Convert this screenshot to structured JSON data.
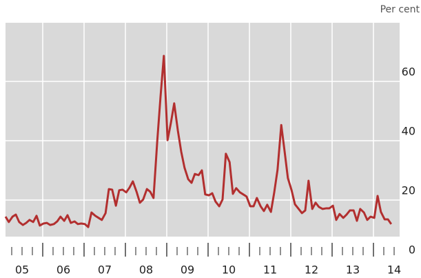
{
  "chart_data": {
    "type": "line",
    "y_axis_label": "Per cent",
    "xlim": [
      2005,
      2014.7
    ],
    "xticks": [
      {
        "value": 2005.5,
        "label": "05"
      },
      {
        "value": 2006.5,
        "label": "06"
      },
      {
        "value": 2007.5,
        "label": "07"
      },
      {
        "value": 2008.5,
        "label": "08"
      },
      {
        "value": 2009.5,
        "label": "09"
      },
      {
        "value": 2010.5,
        "label": "10"
      },
      {
        "value": 2011.5,
        "label": "11"
      },
      {
        "value": 2012.5,
        "label": "12"
      },
      {
        "value": 2013.5,
        "label": "13"
      },
      {
        "value": 2014.5,
        "label": "14"
      }
    ],
    "xgrid": [
      2006,
      2007,
      2008,
      2009,
      2010,
      2011,
      2012,
      2013,
      2014
    ],
    "ylim": [
      0,
      80
    ],
    "yticks": [
      0,
      20,
      40,
      60
    ],
    "grid": true,
    "x": [
      2005.1,
      2005.18,
      2005.27,
      2005.35,
      2005.43,
      2005.52,
      2005.6,
      2005.68,
      2005.77,
      2005.85,
      2005.93,
      2006.02,
      2006.1,
      2006.18,
      2006.27,
      2006.35,
      2006.43,
      2006.52,
      2006.6,
      2006.68,
      2006.77,
      2006.85,
      2006.93,
      2007.02,
      2007.1,
      2007.18,
      2007.27,
      2007.35,
      2007.43,
      2007.52,
      2007.6,
      2007.68,
      2007.77,
      2007.85,
      2007.93,
      2008.02,
      2008.1,
      2008.18,
      2008.27,
      2008.35,
      2008.43,
      2008.52,
      2008.6,
      2008.68,
      2008.77,
      2008.85,
      2008.93,
      2009.02,
      2009.1,
      2009.18,
      2009.27,
      2009.35,
      2009.43,
      2009.52,
      2009.6,
      2009.68,
      2009.77,
      2009.85,
      2009.93,
      2010.02,
      2010.1,
      2010.18,
      2010.27,
      2010.35,
      2010.43,
      2010.52,
      2010.6,
      2010.68,
      2010.77,
      2010.85,
      2010.93,
      2011.02,
      2011.1,
      2011.18,
      2011.27,
      2011.35,
      2011.43,
      2011.52,
      2011.6,
      2011.68,
      2011.77,
      2011.85,
      2011.93,
      2012.02,
      2012.1,
      2012.18,
      2012.27,
      2012.35,
      2012.43,
      2012.52,
      2012.6,
      2012.68,
      2012.77,
      2012.85,
      2012.93,
      2013.02,
      2013.1,
      2013.18,
      2013.27,
      2013.35,
      2013.43,
      2013.52,
      2013.6,
      2013.68,
      2013.77,
      2013.85,
      2013.93,
      2014.02,
      2014.1,
      2014.18,
      2014.27,
      2014.35,
      2014.43
    ],
    "series": [
      {
        "color": "#b22f2f",
        "values": [
          14.4,
          12.6,
          14.4,
          15.1,
          12.6,
          11.6,
          12.3,
          13.3,
          12.6,
          14.7,
          11.4,
          12.1,
          12.3,
          11.6,
          11.9,
          12.8,
          14.4,
          13.0,
          14.9,
          12.3,
          12.8,
          11.9,
          12.1,
          11.9,
          10.9,
          15.8,
          14.7,
          14.0,
          13.3,
          15.6,
          23.7,
          23.5,
          18.1,
          23.3,
          23.5,
          22.6,
          24.2,
          26.3,
          22.8,
          19.1,
          20.2,
          23.7,
          22.8,
          20.7,
          39.8,
          54.9,
          68.6,
          40.2,
          46.0,
          52.6,
          43.3,
          36.3,
          30.9,
          27.0,
          25.8,
          28.8,
          28.4,
          30.0,
          21.9,
          21.6,
          22.3,
          19.5,
          17.9,
          20.2,
          35.6,
          32.8,
          22.1,
          24.0,
          22.6,
          21.9,
          21.2,
          17.9,
          17.9,
          20.7,
          17.9,
          16.3,
          18.4,
          16.0,
          22.6,
          30.2,
          45.3,
          36.5,
          27.4,
          23.3,
          18.6,
          17.2,
          15.6,
          16.5,
          26.5,
          17.0,
          19.1,
          17.7,
          17.0,
          17.2,
          17.2,
          18.1,
          13.3,
          15.3,
          14.0,
          15.1,
          16.5,
          16.5,
          13.0,
          17.0,
          15.8,
          13.3,
          14.4,
          14.0,
          21.4,
          16.0,
          13.5,
          13.5,
          11.9
        ]
      }
    ]
  }
}
